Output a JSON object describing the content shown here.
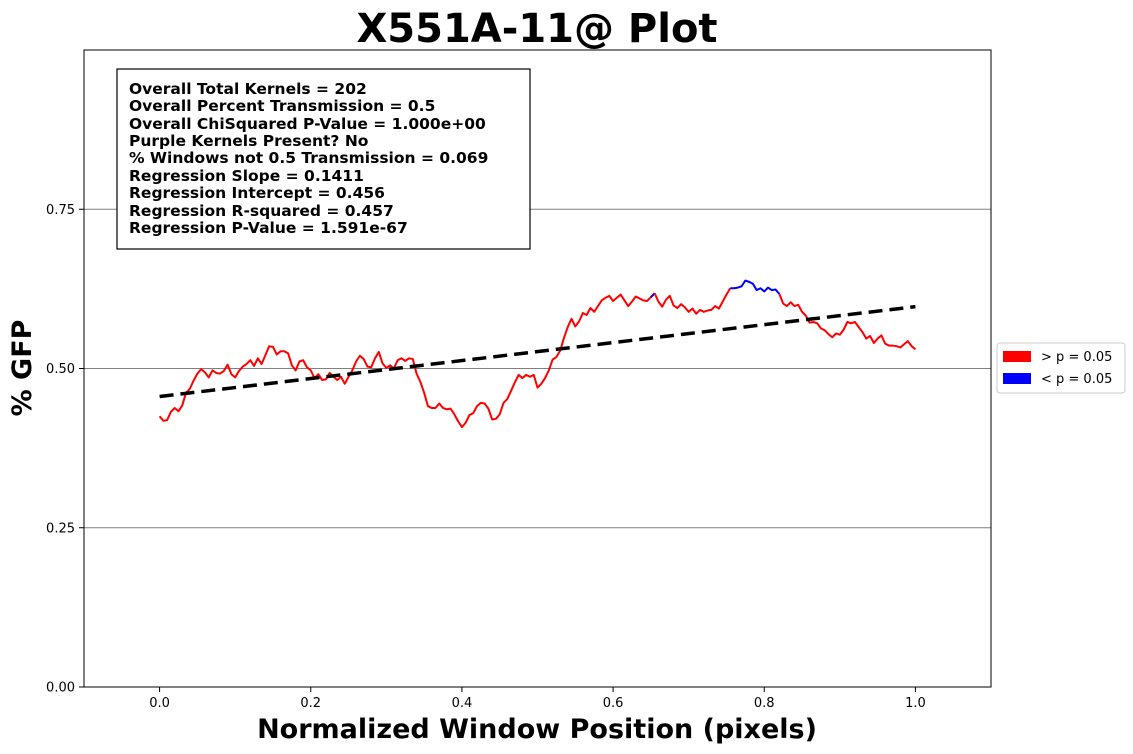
{
  "chart_data": {
    "type": "line",
    "title": "X551A-11@ Plot",
    "xlabel": "Normalized Window Position (pixels)",
    "ylabel": "% GFP",
    "xlim": [
      -0.1,
      1.1
    ],
    "ylim": [
      0.0,
      1.0
    ],
    "xticks": [
      0.0,
      0.2,
      0.4,
      0.6,
      0.8,
      1.0
    ],
    "xtick_labels": [
      "0.0",
      "0.2",
      "0.4",
      "0.6",
      "0.8",
      "1.0"
    ],
    "yticks": [
      0.0,
      0.25,
      0.5,
      0.75
    ],
    "ytick_labels": [
      "0.00",
      "0.25",
      "0.50",
      "0.75"
    ],
    "grid": "horizontal lines at y ticks",
    "stats": [
      "Overall Total Kernels = 202",
      "Overall Percent Transmission = 0.5",
      "Overall ChiSquared P-Value = 1.000e+00",
      "Purple Kernels Present? No",
      "% Windows not 0.5 Transmission = 0.069",
      "Regression Slope = 0.1411",
      "Regression Intercept = 0.456",
      "Regression R-squared = 0.457",
      "Regression P-Value = 1.591e-67"
    ],
    "legend": {
      "placement": "right-outside",
      "entries": [
        {
          "label": "> p = 0.05",
          "color": "#ff0000"
        },
        {
          "label": "< p = 0.05",
          "color": "#0000ff"
        }
      ]
    },
    "regression": {
      "x": [
        0.0,
        1.0
      ],
      "y": [
        0.456,
        0.5971
      ],
      "color": "#000000",
      "style": "dashed"
    },
    "series": [
      {
        "color": "#ff0000",
        "x": [
          0.0,
          0.005,
          0.01,
          0.015,
          0.02,
          0.025,
          0.03,
          0.035,
          0.04,
          0.045,
          0.05,
          0.055,
          0.06,
          0.065,
          0.07,
          0.075,
          0.08,
          0.085,
          0.09,
          0.095,
          0.1,
          0.105,
          0.11,
          0.115,
          0.12,
          0.125,
          0.13,
          0.135,
          0.14,
          0.145,
          0.15,
          0.155,
          0.16,
          0.165,
          0.17,
          0.175,
          0.18,
          0.185,
          0.19,
          0.195,
          0.2,
          0.205,
          0.21,
          0.215,
          0.22,
          0.225,
          0.23,
          0.235,
          0.24,
          0.245,
          0.25,
          0.255,
          0.26,
          0.265,
          0.27,
          0.275,
          0.28,
          0.285,
          0.29,
          0.295,
          0.3,
          0.305,
          0.31,
          0.315,
          0.32,
          0.325,
          0.33,
          0.335,
          0.34,
          0.345,
          0.35,
          0.355,
          0.36,
          0.365,
          0.37,
          0.375,
          0.38,
          0.385,
          0.39,
          0.395,
          0.4,
          0.405,
          0.41,
          0.415,
          0.42,
          0.425,
          0.43,
          0.435,
          0.44,
          0.445,
          0.45,
          0.455,
          0.46,
          0.465,
          0.47,
          0.475,
          0.48,
          0.485,
          0.49,
          0.495,
          0.5,
          0.505,
          0.51,
          0.515,
          0.52,
          0.525,
          0.53,
          0.535,
          0.54,
          0.545,
          0.55,
          0.555,
          0.56,
          0.565,
          0.57,
          0.575,
          0.58,
          0.585,
          0.59,
          0.595,
          0.6,
          0.605,
          0.61,
          0.615,
          0.62,
          0.625,
          0.63,
          0.635,
          0.64,
          0.645,
          0.65,
          0.655
        ],
        "y": [
          0.425,
          0.418,
          0.419,
          0.432,
          0.438,
          0.433,
          0.442,
          0.462,
          0.468,
          0.481,
          0.492,
          0.499,
          0.494,
          0.486,
          0.497,
          0.493,
          0.492,
          0.496,
          0.506,
          0.491,
          0.486,
          0.496,
          0.503,
          0.507,
          0.513,
          0.504,
          0.516,
          0.507,
          0.521,
          0.535,
          0.534,
          0.522,
          0.527,
          0.527,
          0.524,
          0.505,
          0.497,
          0.511,
          0.513,
          0.502,
          0.497,
          0.485,
          0.491,
          0.482,
          0.483,
          0.493,
          0.487,
          0.482,
          0.487,
          0.476,
          0.487,
          0.497,
          0.511,
          0.52,
          0.515,
          0.503,
          0.502,
          0.516,
          0.526,
          0.508,
          0.501,
          0.505,
          0.5,
          0.513,
          0.516,
          0.512,
          0.516,
          0.515,
          0.492,
          0.479,
          0.462,
          0.441,
          0.438,
          0.438,
          0.445,
          0.438,
          0.436,
          0.437,
          0.428,
          0.417,
          0.408,
          0.415,
          0.427,
          0.43,
          0.441,
          0.446,
          0.445,
          0.437,
          0.42,
          0.421,
          0.428,
          0.446,
          0.452,
          0.465,
          0.478,
          0.49,
          0.485,
          0.49,
          0.487,
          0.49,
          0.47,
          0.476,
          0.485,
          0.497,
          0.514,
          0.518,
          0.528,
          0.548,
          0.565,
          0.578,
          0.566,
          0.574,
          0.587,
          0.584,
          0.595,
          0.589,
          0.598,
          0.607,
          0.611,
          0.614,
          0.606,
          0.611,
          0.616,
          0.607,
          0.598,
          0.605,
          0.613,
          0.61,
          0.607,
          0.606,
          0.612,
          0.618
        ]
      },
      {
        "color": "#0000ff",
        "x": [
          0.65,
          0.655
        ],
        "y": [
          0.612,
          0.618
        ]
      },
      {
        "color": "#ff0000",
        "x": [
          0.655,
          0.66,
          0.665,
          0.67,
          0.675,
          0.68,
          0.685,
          0.69,
          0.695,
          0.7,
          0.705,
          0.71,
          0.715,
          0.72,
          0.725,
          0.73,
          0.735,
          0.74,
          0.745,
          0.75,
          0.755
        ],
        "y": [
          0.618,
          0.605,
          0.597,
          0.608,
          0.614,
          0.599,
          0.595,
          0.601,
          0.596,
          0.589,
          0.594,
          0.586,
          0.592,
          0.589,
          0.591,
          0.592,
          0.598,
          0.594,
          0.605,
          0.616,
          0.626
        ]
      },
      {
        "color": "#0000ff",
        "x": [
          0.755,
          0.76,
          0.765,
          0.77,
          0.775,
          0.78,
          0.785,
          0.79,
          0.795,
          0.8,
          0.805,
          0.81,
          0.815,
          0.82
        ],
        "y": [
          0.626,
          0.626,
          0.627,
          0.629,
          0.638,
          0.636,
          0.633,
          0.623,
          0.626,
          0.621,
          0.627,
          0.623,
          0.624,
          0.617
        ]
      },
      {
        "color": "#ff0000",
        "x": [
          0.82,
          0.825,
          0.83,
          0.835,
          0.84,
          0.845,
          0.85,
          0.855,
          0.86,
          0.865,
          0.87,
          0.875,
          0.88,
          0.885,
          0.89,
          0.895,
          0.9,
          0.905,
          0.91,
          0.915,
          0.92,
          0.925,
          0.93,
          0.935,
          0.94,
          0.945,
          0.95,
          0.955,
          0.96,
          0.965,
          0.97,
          0.975,
          0.98,
          0.985,
          0.99,
          0.995,
          1.0
        ],
        "y": [
          0.617,
          0.602,
          0.598,
          0.604,
          0.598,
          0.6,
          0.589,
          0.583,
          0.572,
          0.573,
          0.571,
          0.563,
          0.56,
          0.554,
          0.549,
          0.555,
          0.553,
          0.561,
          0.573,
          0.571,
          0.573,
          0.565,
          0.557,
          0.547,
          0.551,
          0.54,
          0.547,
          0.552,
          0.539,
          0.536,
          0.536,
          0.535,
          0.533,
          0.538,
          0.543,
          0.535,
          0.53
        ]
      }
    ]
  }
}
